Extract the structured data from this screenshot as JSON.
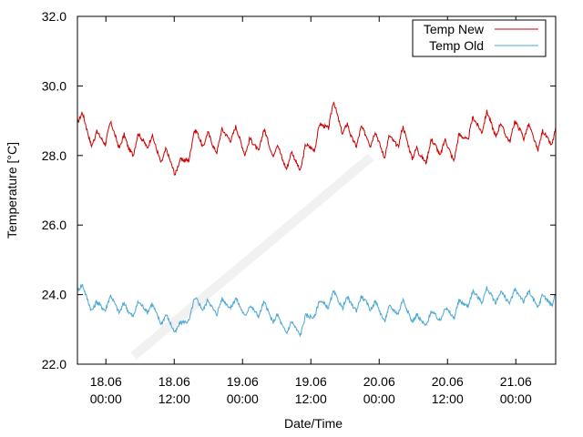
{
  "chart_data": {
    "type": "line",
    "title": "",
    "xlabel": "Date/Time",
    "ylabel": "Temperature [°C]",
    "ylim": [
      22.0,
      32.0
    ],
    "yticks": [
      22.0,
      24.0,
      26.0,
      28.0,
      30.0,
      32.0
    ],
    "ytick_labels": [
      "22.0",
      "24.0",
      "26.0",
      "28.0",
      "30.0",
      "32.0"
    ],
    "xlim": [
      "2023-06-17T19:00",
      "2023-06-21T07:00"
    ],
    "xticks": [
      "2023-06-18T00:00",
      "2023-06-18T12:00",
      "2023-06-19T00:00",
      "2023-06-19T12:00",
      "2023-06-20T00:00",
      "2023-06-20T12:00",
      "2023-06-21T00:00"
    ],
    "xtick_labels": [
      {
        "date": "18.06",
        "time": "00:00"
      },
      {
        "date": "18.06",
        "time": "12:00"
      },
      {
        "date": "19.06",
        "time": "00:00"
      },
      {
        "date": "19.06",
        "time": "12:00"
      },
      {
        "date": "20.06",
        "time": "00:00"
      },
      {
        "date": "20.06",
        "time": "12:00"
      },
      {
        "date": "21.06",
        "time": "00:00"
      }
    ],
    "grid": false,
    "legend_position": "top-right",
    "series": [
      {
        "name": "Temp New",
        "color": "#cc0000",
        "x": [
          "2023-06-17T19:00",
          "2023-06-17T22:00",
          "2023-06-18T01:00",
          "2023-06-18T04:00",
          "2023-06-18T07:00",
          "2023-06-18T10:00",
          "2023-06-18T13:00",
          "2023-06-18T16:00",
          "2023-06-18T19:00",
          "2023-06-18T22:00",
          "2023-06-19T01:00",
          "2023-06-19T04:00",
          "2023-06-19T07:00",
          "2023-06-19T10:00",
          "2023-06-19T13:00",
          "2023-06-19T16:00",
          "2023-06-19T19:00",
          "2023-06-19T22:00",
          "2023-06-20T01:00",
          "2023-06-20T04:00",
          "2023-06-20T07:00",
          "2023-06-20T10:00",
          "2023-06-20T13:00",
          "2023-06-20T16:00",
          "2023-06-20T19:00",
          "2023-06-20T22:00",
          "2023-06-21T01:00",
          "2023-06-21T04:00",
          "2023-06-21T07:00"
        ],
        "values": [
          29.2,
          28.4,
          28.7,
          28.2,
          28.5,
          28.0,
          27.6,
          28.6,
          28.3,
          28.7,
          28.2,
          28.5,
          27.9,
          27.8,
          28.5,
          29.3,
          28.5,
          28.6,
          28.2,
          28.6,
          27.9,
          28.3,
          28.1,
          28.8,
          29.0,
          28.6,
          28.8,
          28.4,
          28.6
        ]
      },
      {
        "name": "Temp Old",
        "color": "#4aa6d3",
        "x": [
          "2023-06-17T19:00",
          "2023-06-17T22:00",
          "2023-06-18T01:00",
          "2023-06-18T04:00",
          "2023-06-18T07:00",
          "2023-06-18T10:00",
          "2023-06-18T13:00",
          "2023-06-18T16:00",
          "2023-06-18T19:00",
          "2023-06-18T22:00",
          "2023-06-19T01:00",
          "2023-06-19T04:00",
          "2023-06-19T07:00",
          "2023-06-19T10:00",
          "2023-06-19T13:00",
          "2023-06-19T16:00",
          "2023-06-19T19:00",
          "2023-06-19T22:00",
          "2023-06-20T01:00",
          "2023-06-20T04:00",
          "2023-06-20T07:00",
          "2023-06-20T10:00",
          "2023-06-20T13:00",
          "2023-06-20T16:00",
          "2023-06-20T19:00",
          "2023-06-20T22:00",
          "2023-06-21T01:00",
          "2023-06-21T04:00",
          "2023-06-21T07:00"
        ],
        "values": [
          24.3,
          23.6,
          23.8,
          23.5,
          23.7,
          23.3,
          23.0,
          23.8,
          23.6,
          23.8,
          23.5,
          23.6,
          23.1,
          23.0,
          23.6,
          23.9,
          23.7,
          23.8,
          23.4,
          23.7,
          23.2,
          23.4,
          23.5,
          23.9,
          24.0,
          23.9,
          24.0,
          23.8,
          23.9
        ]
      }
    ]
  }
}
